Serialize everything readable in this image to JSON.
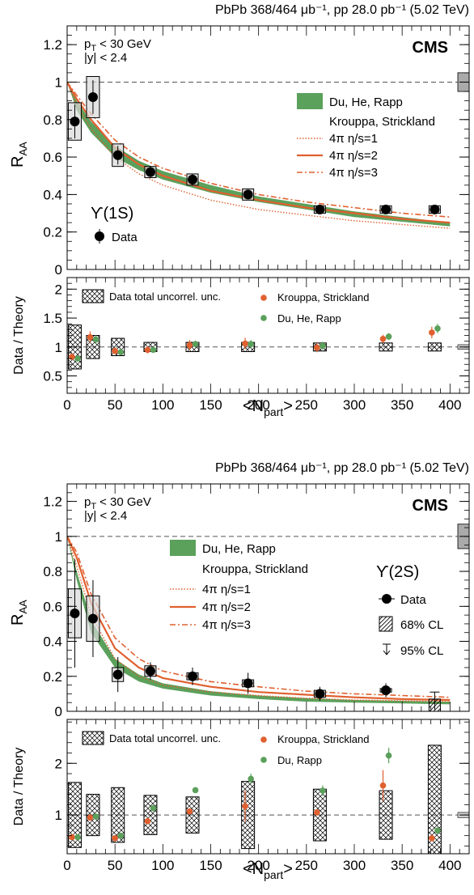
{
  "colors": {
    "kroupa": "#e0602f",
    "du_band": "#5ba05b",
    "du_points": "#5ba05b",
    "data": "#000000",
    "syst_box": "#d9d9d9"
  },
  "chart_data": [
    {
      "id": "ups1s",
      "type": "scatter",
      "header": "PbPb 368/464 μb⁻¹, pp 28.0 pb⁻¹ (5.02 TeV)",
      "cms_label": "CMS",
      "state_label": "ϒ(1S)",
      "cuts": [
        "p",
        "< 30 GeV",
        "|y| < 2.4"
      ],
      "cut_subscript": "T",
      "ylabel": "R",
      "ylabel_sub": "AA",
      "ratio_ylabel": "Data / Theory",
      "xlabel": "<N",
      "xlabel_sub": "part",
      "xlabel_end": ">",
      "xlim": [
        0,
        420
      ],
      "ylim": [
        0,
        1.3
      ],
      "ratio_ylim": [
        0.2,
        2.2
      ],
      "x_ticks": [
        "0",
        "50",
        "100",
        "150",
        "200",
        "250",
        "300",
        "350",
        "400"
      ],
      "y_ticks": [
        "0",
        "0.2",
        "0.4",
        "0.6",
        "0.8",
        "1",
        "1.2"
      ],
      "ratio_ticks": [
        "0.5",
        "1",
        "1.5",
        "2"
      ],
      "legend_top": {
        "du": "Du, He, Rapp",
        "kroupa_title": "Krouppa, Strickland",
        "k1": "4π η/s=1",
        "k2": "4π η/s=2",
        "k3": "4π η/s=3",
        "data": "Data"
      },
      "legend_ratio": {
        "box": "Data total uncorrel. unc.",
        "kroupa": "Krouppa, Strickland",
        "du": "Du, He, Rapp"
      },
      "data_points": [
        {
          "x": 8,
          "y": 0.79,
          "ey": 0.09,
          "sys": 0.1
        },
        {
          "x": 27,
          "y": 0.92,
          "ey": 0.09,
          "sys": 0.11
        },
        {
          "x": 53,
          "y": 0.61,
          "ey": 0.05,
          "sys": 0.06
        },
        {
          "x": 87,
          "y": 0.52,
          "ey": 0.03,
          "sys": 0.03
        },
        {
          "x": 131,
          "y": 0.48,
          "ey": 0.03,
          "sys": 0.03
        },
        {
          "x": 189,
          "y": 0.4,
          "ey": 0.02,
          "sys": 0.03
        },
        {
          "x": 264,
          "y": 0.32,
          "ey": 0.015,
          "sys": 0.02
        },
        {
          "x": 333,
          "y": 0.32,
          "ey": 0.015,
          "sys": 0.02
        },
        {
          "x": 384,
          "y": 0.32,
          "ey": 0.015,
          "sys": 0.02
        }
      ],
      "global_box": {
        "y": 1.0,
        "half": 0.05
      },
      "du_band": {
        "x": [
          0,
          10,
          25,
          50,
          75,
          100,
          150,
          200,
          250,
          300,
          350,
          400
        ],
        "lo": [
          1.0,
          0.85,
          0.73,
          0.6,
          0.53,
          0.48,
          0.41,
          0.36,
          0.32,
          0.28,
          0.255,
          0.23
        ],
        "hi": [
          1.0,
          0.9,
          0.79,
          0.66,
          0.58,
          0.525,
          0.45,
          0.39,
          0.35,
          0.31,
          0.28,
          0.25
        ]
      },
      "kroupa": {
        "x": [
          0,
          10,
          25,
          50,
          75,
          100,
          150,
          200,
          250,
          300,
          350,
          400
        ],
        "s1": [
          1.0,
          0.88,
          0.75,
          0.6,
          0.51,
          0.45,
          0.37,
          0.32,
          0.29,
          0.26,
          0.24,
          0.22
        ],
        "s2": [
          1.0,
          0.91,
          0.8,
          0.65,
          0.56,
          0.5,
          0.42,
          0.37,
          0.33,
          0.3,
          0.27,
          0.25
        ],
        "s3": [
          1.0,
          0.93,
          0.83,
          0.69,
          0.6,
          0.54,
          0.46,
          0.4,
          0.36,
          0.33,
          0.3,
          0.28
        ]
      },
      "ratio": {
        "boxes": [
          {
            "x": 8,
            "half": 0.38
          },
          {
            "x": 27,
            "half": 0.2
          },
          {
            "x": 53,
            "half": 0.15
          },
          {
            "x": 87,
            "half": 0.08
          },
          {
            "x": 131,
            "half": 0.08
          },
          {
            "x": 189,
            "half": 0.08
          },
          {
            "x": 264,
            "half": 0.07
          },
          {
            "x": 333,
            "half": 0.07
          },
          {
            "x": 384,
            "half": 0.07
          }
        ],
        "kroupa": [
          {
            "x": 5,
            "y": 0.83,
            "e": 0.0
          },
          {
            "x": 24,
            "y": 1.17,
            "e": 0.1
          },
          {
            "x": 50,
            "y": 0.93,
            "e": 0.05
          },
          {
            "x": 84,
            "y": 0.95,
            "e": 0.06
          },
          {
            "x": 128,
            "y": 1.03,
            "e": 0.09
          },
          {
            "x": 186,
            "y": 1.06,
            "e": 0.1
          },
          {
            "x": 261,
            "y": 0.99,
            "e": 0.08
          },
          {
            "x": 330,
            "y": 1.14,
            "e": 0.07
          },
          {
            "x": 381,
            "y": 1.25,
            "e": 0.1
          }
        ],
        "du": [
          {
            "x": 11,
            "y": 0.8,
            "e": 0.0
          },
          {
            "x": 30,
            "y": 1.13,
            "e": 0.07
          },
          {
            "x": 56,
            "y": 0.91,
            "e": 0.05
          },
          {
            "x": 90,
            "y": 0.95,
            "e": 0.05
          },
          {
            "x": 134,
            "y": 1.05,
            "e": 0.06
          },
          {
            "x": 192,
            "y": 1.05,
            "e": 0.07
          },
          {
            "x": 267,
            "y": 1.02,
            "e": 0.07
          },
          {
            "x": 336,
            "y": 1.18,
            "e": 0.06
          },
          {
            "x": 387,
            "y": 1.32,
            "e": 0.08
          }
        ],
        "global_half": 0.04
      }
    },
    {
      "id": "ups2s",
      "type": "scatter",
      "header": "PbPb 368/464 μb⁻¹, pp 28.0 pb⁻¹ (5.02 TeV)",
      "cms_label": "CMS",
      "state_label": "ϒ(2S)",
      "cuts": [
        "p",
        "< 30 GeV",
        "|y| < 2.4"
      ],
      "cut_subscript": "T",
      "ylabel": "R",
      "ylabel_sub": "AA",
      "ratio_ylabel": "Data / Theory",
      "xlabel": "<N",
      "xlabel_sub": "part",
      "xlabel_end": ">",
      "xlim": [
        0,
        420
      ],
      "ylim": [
        0,
        1.3
      ],
      "ratio_ylim": [
        0.25,
        2.85
      ],
      "x_ticks": [
        "0",
        "50",
        "100",
        "150",
        "200",
        "250",
        "300",
        "350",
        "400"
      ],
      "y_ticks": [
        "0",
        "0.2",
        "0.4",
        "0.6",
        "0.8",
        "1",
        "1.2"
      ],
      "ratio_ticks": [
        "1",
        "2"
      ],
      "legend_top": {
        "du": "Du, He, Rapp",
        "kroupa_title": "Krouppa, Strickland",
        "k1": "4π η/s=1",
        "k2": "4π η/s=2",
        "k3": "4π η/s=3",
        "data": "Data",
        "cl68": "68% CL",
        "cl95": "95% CL"
      },
      "legend_ratio": {
        "box": "Data total uncorrel. unc.",
        "kroupa": "Krouppa, Strickland",
        "du": "Du, Rapp"
      },
      "data_points": [
        {
          "x": 8,
          "y": 0.56,
          "ey": 0.31,
          "sys": 0.14
        },
        {
          "x": 27,
          "y": 0.53,
          "ey": 0.22,
          "sys": 0.13
        },
        {
          "x": 53,
          "y": 0.21,
          "ey": 0.1,
          "sys": 0.04
        },
        {
          "x": 87,
          "y": 0.23,
          "ey": 0.05,
          "sys": 0.03
        },
        {
          "x": 131,
          "y": 0.2,
          "ey": 0.05,
          "sys": 0.02
        },
        {
          "x": 189,
          "y": 0.16,
          "ey": 0.06,
          "sys": 0.02
        },
        {
          "x": 264,
          "y": 0.1,
          "ey": 0.04,
          "sys": 0.02
        },
        {
          "x": 333,
          "y": 0.12,
          "ey": 0.04,
          "sys": 0.01
        }
      ],
      "upper_limit": {
        "x": 384,
        "cl68": 0.07,
        "cl95": 0.11
      },
      "global_box": {
        "y": 1.0,
        "half": 0.07
      },
      "du_band": {
        "x": [
          0,
          10,
          25,
          50,
          75,
          100,
          150,
          200,
          250,
          300,
          350,
          400
        ],
        "lo": [
          1.0,
          0.75,
          0.45,
          0.25,
          0.17,
          0.13,
          0.09,
          0.07,
          0.055,
          0.05,
          0.045,
          0.04
        ],
        "hi": [
          1.0,
          0.8,
          0.52,
          0.3,
          0.21,
          0.16,
          0.115,
          0.09,
          0.075,
          0.065,
          0.06,
          0.055
        ]
      },
      "kroupa": {
        "x": [
          0,
          10,
          25,
          50,
          75,
          100,
          150,
          200,
          250,
          300,
          350,
          400
        ],
        "s1": [
          1.0,
          0.83,
          0.55,
          0.3,
          0.2,
          0.15,
          0.11,
          0.09,
          0.075,
          0.065,
          0.06,
          0.055
        ],
        "s2": [
          1.0,
          0.88,
          0.62,
          0.36,
          0.25,
          0.19,
          0.14,
          0.11,
          0.095,
          0.08,
          0.07,
          0.065
        ],
        "s3": [
          1.0,
          0.91,
          0.67,
          0.42,
          0.3,
          0.23,
          0.17,
          0.14,
          0.115,
          0.1,
          0.09,
          0.08
        ]
      },
      "ratio": {
        "boxes": [
          {
            "x": 8,
            "half": 0.63
          },
          {
            "x": 27,
            "half": 0.4
          },
          {
            "x": 53,
            "half": 0.53
          },
          {
            "x": 87,
            "half": 0.38
          },
          {
            "x": 131,
            "half": 0.35
          },
          {
            "x": 189,
            "half": 0.65
          },
          {
            "x": 264,
            "half": 0.5
          },
          {
            "x": 333,
            "half": 0.47
          },
          {
            "x": 384,
            "half": 1.35
          }
        ],
        "kroupa": [
          {
            "x": 5,
            "y": 0.57,
            "e": 0.0
          },
          {
            "x": 24,
            "y": 0.95,
            "e": 0.0
          },
          {
            "x": 50,
            "y": 0.55,
            "e": 0.0
          },
          {
            "x": 84,
            "y": 0.88,
            "e": 0.0
          },
          {
            "x": 128,
            "y": 1.07,
            "e": 0.0
          },
          {
            "x": 186,
            "y": 1.17,
            "e": 0.3
          },
          {
            "x": 261,
            "y": 1.05,
            "e": 0.0
          },
          {
            "x": 330,
            "y": 1.57,
            "e": 0.3
          },
          {
            "x": 381,
            "y": 0.55,
            "e": 0.0
          }
        ],
        "du": [
          {
            "x": 11,
            "y": 0.57,
            "e": 0.0
          },
          {
            "x": 30,
            "y": 0.97,
            "e": 0.0
          },
          {
            "x": 56,
            "y": 0.6,
            "e": 0.0
          },
          {
            "x": 90,
            "y": 1.13,
            "e": 0.0
          },
          {
            "x": 134,
            "y": 1.48,
            "e": 0.05
          },
          {
            "x": 192,
            "y": 1.7,
            "e": 0.1
          },
          {
            "x": 267,
            "y": 1.47,
            "e": 0.1
          },
          {
            "x": 336,
            "y": 2.15,
            "e": 0.15
          },
          {
            "x": 387,
            "y": 0.7,
            "e": 0.0
          }
        ],
        "global_half": 0.05
      }
    }
  ]
}
